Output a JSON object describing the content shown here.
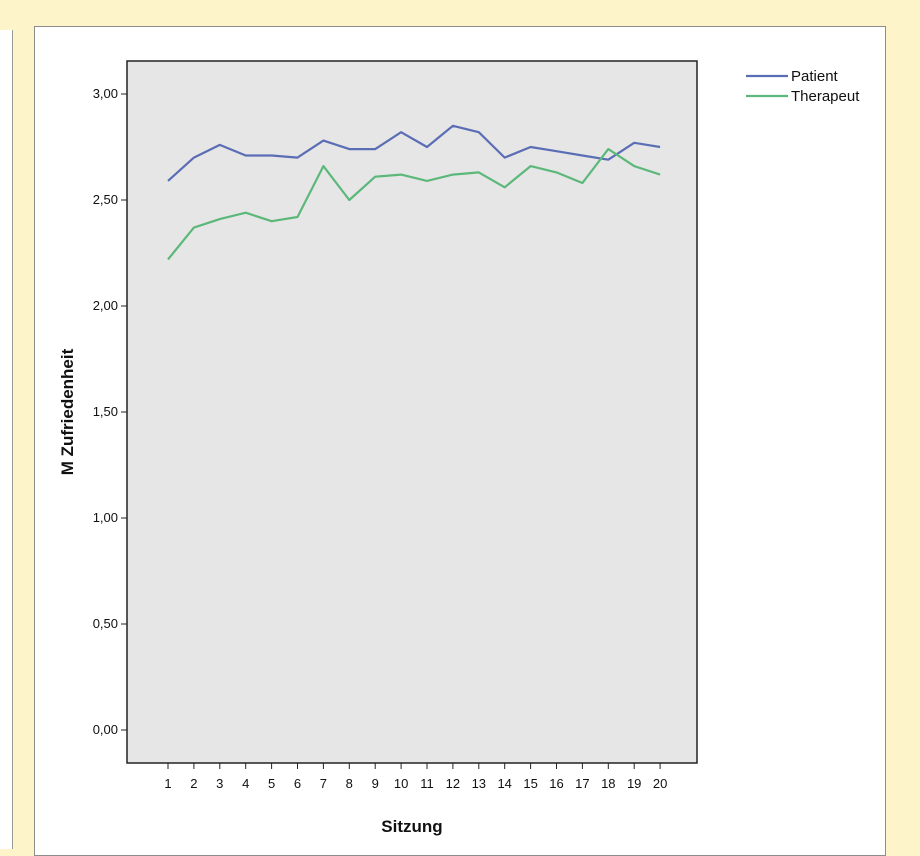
{
  "chart_data": {
    "type": "line",
    "xlabel": "Sitzung",
    "ylabel": "M Zufriedenheit",
    "x": [
      1,
      2,
      3,
      4,
      5,
      6,
      7,
      8,
      9,
      10,
      11,
      12,
      13,
      14,
      15,
      16,
      17,
      18,
      19,
      20
    ],
    "ylim": [
      0,
      3.2
    ],
    "yticks": [
      "0,00",
      "0,50",
      "1,00",
      "1,50",
      "2,00",
      "2,50",
      "3,00"
    ],
    "ytick_values": [
      0,
      0.5,
      1.0,
      1.5,
      2.0,
      2.5,
      3.0
    ],
    "legend_position": "top-right, outside plot",
    "grid": false,
    "plot_background": "#e6e6e6",
    "series": [
      {
        "name": "Patient",
        "color": "#5b6db5",
        "values": [
          2.59,
          2.7,
          2.76,
          2.71,
          2.71,
          2.7,
          2.78,
          2.74,
          2.74,
          2.82,
          2.75,
          2.85,
          2.82,
          2.7,
          2.75,
          2.73,
          2.71,
          2.69,
          2.77,
          2.75
        ]
      },
      {
        "name": "Therapeut",
        "color": "#5cb87a",
        "values": [
          2.22,
          2.37,
          2.41,
          2.44,
          2.4,
          2.42,
          2.66,
          2.5,
          2.61,
          2.62,
          2.59,
          2.62,
          2.63,
          2.56,
          2.66,
          2.63,
          2.58,
          2.74,
          2.66,
          2.62
        ]
      }
    ]
  }
}
